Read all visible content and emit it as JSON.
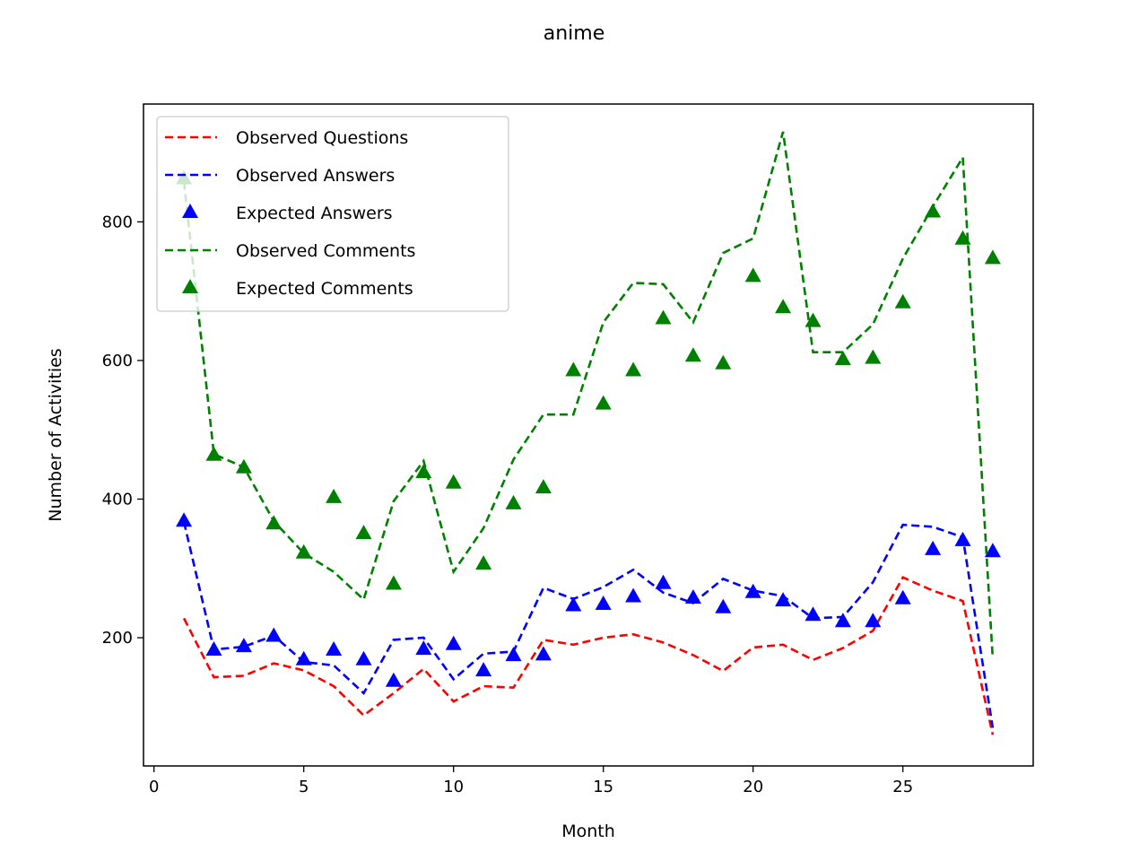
{
  "chart_data": {
    "type": "line",
    "title": "anime",
    "xlabel": "Month",
    "ylabel": "Number of Activities",
    "xlim": [
      -0.35,
      29.35
    ],
    "ylim": [
      15,
      970
    ],
    "xticks": [
      0,
      5,
      10,
      15,
      20,
      25
    ],
    "yticks": [
      200,
      400,
      600,
      800
    ],
    "grid": false,
    "legend_placement": "upper-left",
    "x": [
      1,
      2,
      3,
      4,
      5,
      6,
      7,
      8,
      9,
      10,
      11,
      12,
      13,
      14,
      15,
      16,
      17,
      18,
      19,
      20,
      21,
      22,
      23,
      24,
      25,
      26,
      27,
      28
    ],
    "series": [
      {
        "name": "Observed Questions",
        "style": "dashed-line",
        "color": "#ff0000",
        "values": [
          228,
          143,
          145,
          163,
          153,
          130,
          88,
          120,
          155,
          108,
          130,
          128,
          197,
          190,
          200,
          205,
          193,
          175,
          152,
          186,
          190,
          168,
          185,
          210,
          287,
          268,
          253,
          60
        ]
      },
      {
        "name": "Observed Answers",
        "style": "dashed-line",
        "color": "#0000ff",
        "values": [
          367,
          183,
          187,
          203,
          165,
          160,
          120,
          197,
          200,
          140,
          177,
          180,
          272,
          256,
          273,
          298,
          265,
          250,
          285,
          268,
          260,
          228,
          230,
          280,
          363,
          360,
          345,
          70
        ]
      },
      {
        "name": "Expected Answers",
        "style": "triangle-marker",
        "color": "#0000ff",
        "values": [
          368,
          182,
          187,
          202,
          168,
          182,
          168,
          137,
          183,
          190,
          152,
          174,
          175,
          246,
          248,
          259,
          278,
          257,
          243,
          265,
          253,
          232,
          223,
          223,
          256,
          327,
          340,
          324
        ]
      },
      {
        "name": "Observed Comments",
        "style": "dashed-line",
        "color": "#008000",
        "values": [
          858,
          465,
          446,
          368,
          322,
          295,
          255,
          397,
          455,
          295,
          358,
          457,
          522,
          522,
          655,
          712,
          710,
          655,
          755,
          776,
          930,
          612,
          612,
          652,
          747,
          822,
          893,
          170
        ]
      },
      {
        "name": "Expected Comments",
        "style": "triangle-marker",
        "color": "#008000",
        "values": [
          862,
          463,
          445,
          364,
          322,
          402,
          350,
          277,
          438,
          423,
          306,
          393,
          416,
          585,
          537,
          585,
          660,
          606,
          595,
          721,
          676,
          656,
          601,
          603,
          683,
          814,
          775,
          747
        ]
      }
    ]
  }
}
